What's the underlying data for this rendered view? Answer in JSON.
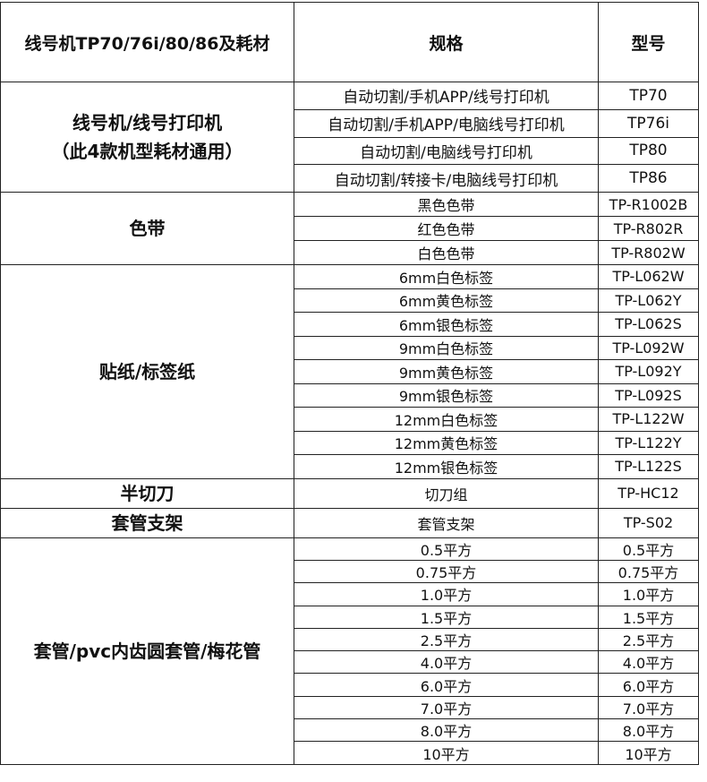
{
  "header": [
    "线号机TP70/76i/80/86及耗材",
    "规格",
    "型号"
  ],
  "groups": [
    {
      "name": "线号机/线号打印机",
      "note": "（此4款机型耗材通用）",
      "items": [
        {
          "spec": "自动切割/手机APP/线号打印机",
          "model": "TP70"
        },
        {
          "spec": "自动切割/手机APP/电脑线号打印机",
          "model": "TP76i"
        },
        {
          "spec": "自动切割/电脑线号打印机",
          "model": "TP80"
        },
        {
          "spec": "自动切割/转接卡/电脑线号打印机",
          "model": "TP86"
        }
      ]
    },
    {
      "name": "色带",
      "items": [
        {
          "spec": "黑色色带",
          "model": "TP-R1002B"
        },
        {
          "spec": "红色色带",
          "model": "TP-R802R"
        },
        {
          "spec": "白色色带",
          "model": "TP-R802W"
        }
      ]
    },
    {
      "name": "贴纸/标签纸",
      "items": [
        {
          "spec": "6mm白色标签",
          "model": "TP-L062W"
        },
        {
          "spec": "6mm黄色标签",
          "model": "TP-L062Y"
        },
        {
          "spec": "6mm银色标签",
          "model": "TP-L062S"
        },
        {
          "spec": "9mm白色标签",
          "model": "TP-L092W"
        },
        {
          "spec": "9mm黄色标签",
          "model": "TP-L092Y"
        },
        {
          "spec": "9mm银色标签",
          "model": "TP-L092S"
        },
        {
          "spec": "12mm白色标签",
          "model": "TP-L122W"
        },
        {
          "spec": "12mm黄色标签",
          "model": "TP-L122Y"
        },
        {
          "spec": "12mm银色标签",
          "model": "TP-L122S"
        }
      ]
    },
    {
      "name": "半切刀",
      "items": [
        {
          "spec": "切刀组",
          "model": "TP-HC12"
        }
      ]
    },
    {
      "name": "套管支架",
      "items": [
        {
          "spec": "套管支架",
          "model": "TP-S02"
        }
      ]
    },
    {
      "name": "套管/pvc内齿圆套管/梅花管",
      "items": [
        {
          "spec": "0.5平方",
          "model": "0.5平方"
        },
        {
          "spec": "0.75平方",
          "model": "0.75平方"
        },
        {
          "spec": "1.0平方",
          "model": "1.0平方"
        },
        {
          "spec": "1.5平方",
          "model": "1.5平方"
        },
        {
          "spec": "2.5平方",
          "model": "2.5平方"
        },
        {
          "spec": "4.0平方",
          "model": "4.0平方"
        },
        {
          "spec": "6.0平方",
          "model": "6.0平方"
        },
        {
          "spec": "7.0平方",
          "model": "7.0平方"
        },
        {
          "spec": "8.0平方",
          "model": "8.0平方"
        },
        {
          "spec": "10平方",
          "model": "10平方"
        }
      ]
    }
  ]
}
